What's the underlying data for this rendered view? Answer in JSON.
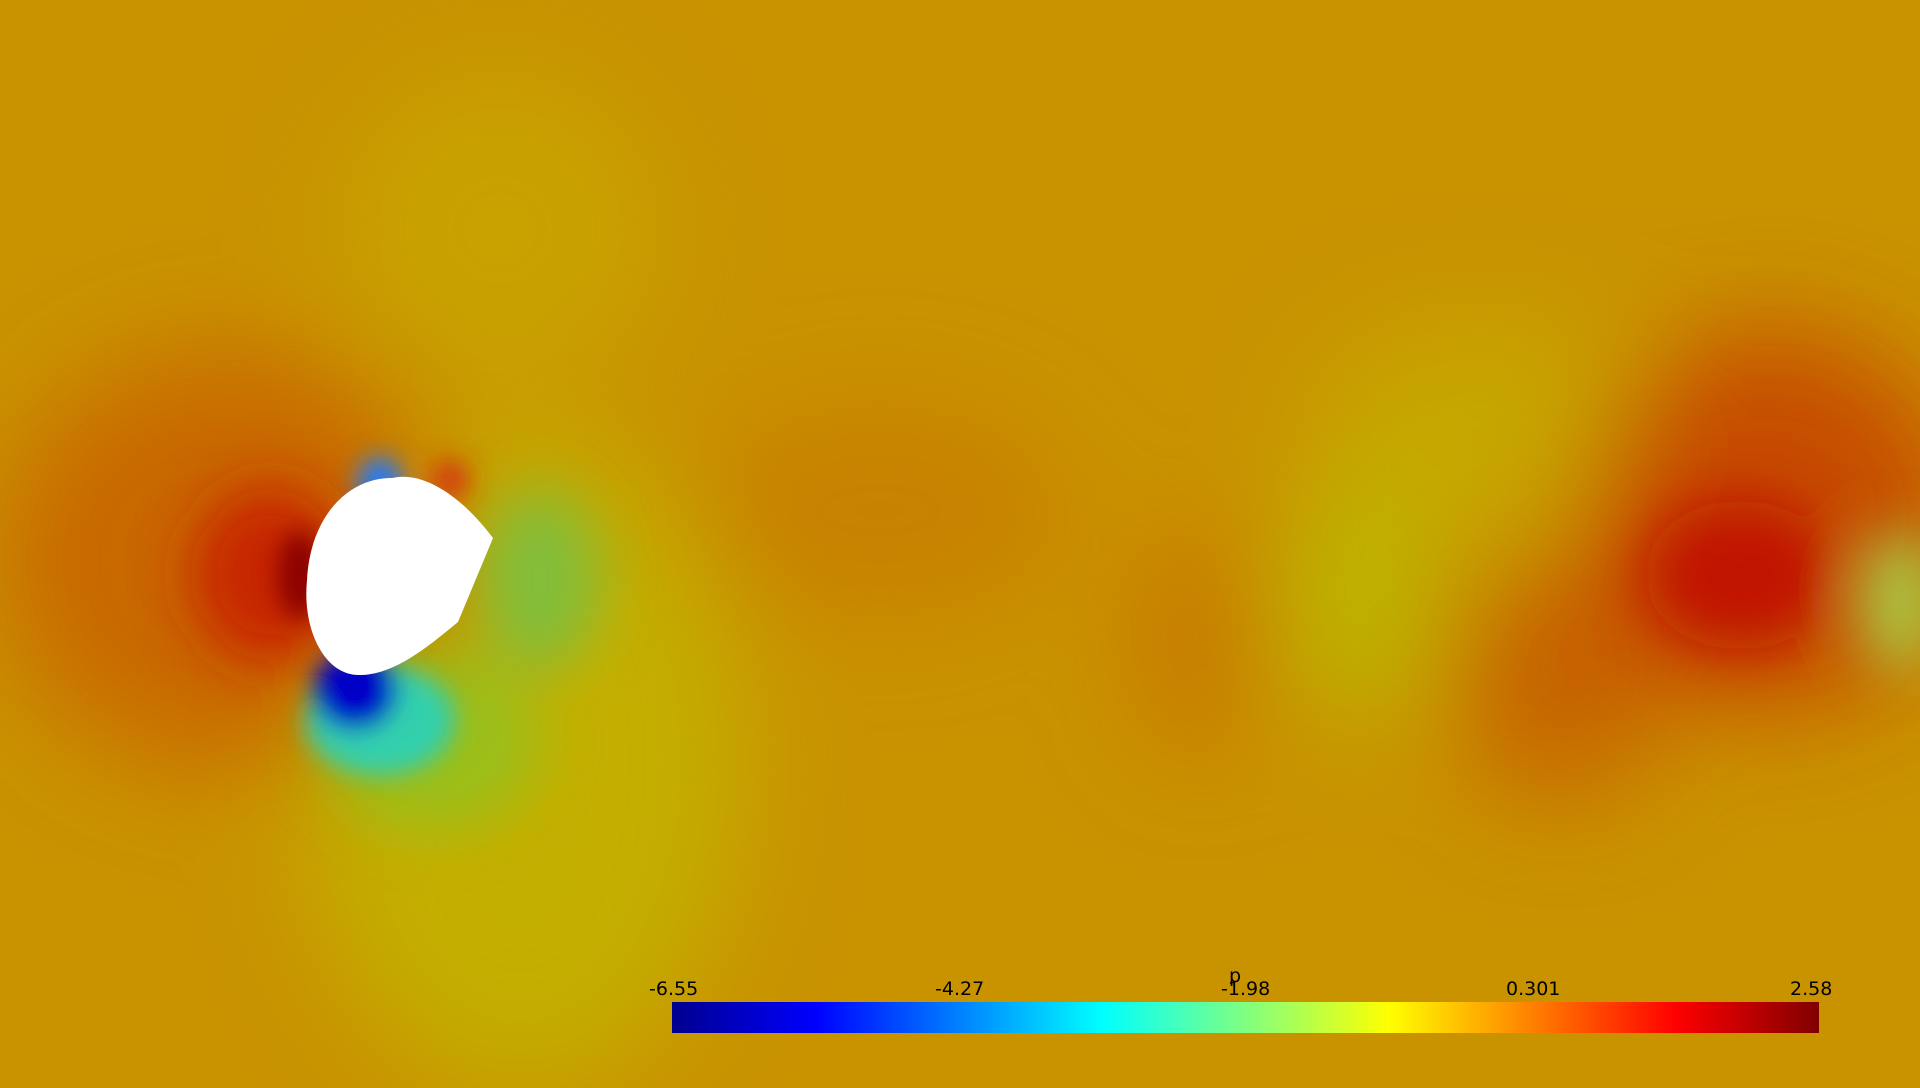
{
  "visualization": {
    "field_name": "p",
    "background_color": "#c89a00",
    "obstacle_color": "#ffffff",
    "colormap": "jet",
    "colorbar": {
      "title": "p",
      "range": [
        -6.55,
        2.58
      ],
      "ticks": [
        "-6.55",
        "-4.27",
        "-1.98",
        "0.301",
        "2.58"
      ],
      "orientation": "horizontal",
      "placement": "bottom-right"
    }
  }
}
